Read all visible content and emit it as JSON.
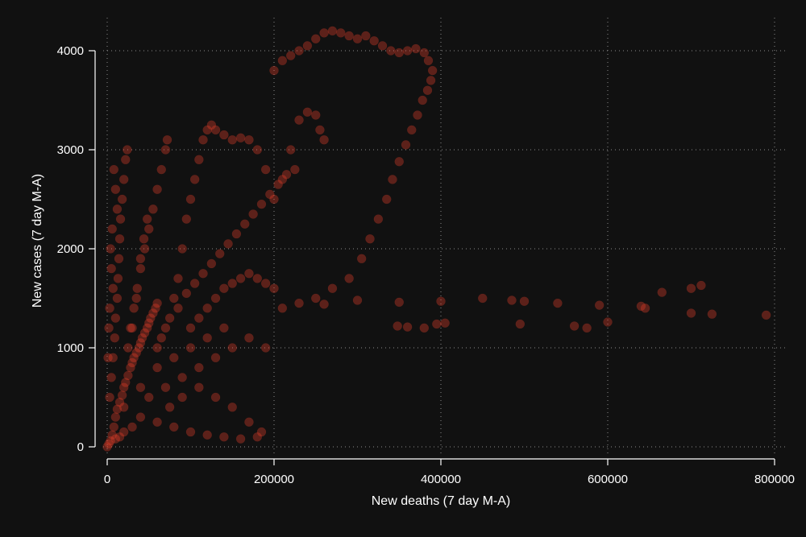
{
  "chart_data": {
    "type": "scatter",
    "xlabel": "New deaths (7 day M-A)",
    "ylabel": "New cases (7 day M-A)",
    "xlim": [
      0,
      800000
    ],
    "ylim": [
      0,
      4000
    ],
    "x_ticks": [
      0,
      200000,
      400000,
      600000,
      800000
    ],
    "y_ticks": [
      0,
      1000,
      2000,
      3000,
      4000
    ],
    "x_tick_labels": [
      "0",
      "200000",
      "400000",
      "600000",
      "800000"
    ],
    "y_tick_labels": [
      "0",
      "1000",
      "2000",
      "3000",
      "4000"
    ],
    "grid": true,
    "legend": "none",
    "marker_color": "#e8402a",
    "background": "#111111",
    "series": [
      {
        "points": [
          [
            0,
            0
          ],
          [
            2000,
            30
          ],
          [
            4000,
            60
          ],
          [
            6000,
            120
          ],
          [
            8000,
            200
          ],
          [
            10000,
            300
          ],
          [
            12000,
            380
          ],
          [
            15000,
            450
          ],
          [
            18000,
            520
          ],
          [
            20000,
            600
          ],
          [
            22000,
            650
          ],
          [
            25000,
            720
          ],
          [
            28000,
            800
          ],
          [
            30000,
            850
          ],
          [
            32000,
            900
          ],
          [
            35000,
            950
          ],
          [
            38000,
            1000
          ],
          [
            40000,
            1050
          ],
          [
            42000,
            1100
          ],
          [
            45000,
            1150
          ],
          [
            48000,
            1200
          ],
          [
            50000,
            1250
          ],
          [
            52000,
            1300
          ],
          [
            55000,
            1350
          ],
          [
            58000,
            1400
          ],
          [
            60000,
            1450
          ],
          [
            3000,
            500
          ],
          [
            5000,
            700
          ],
          [
            7000,
            900
          ],
          [
            9000,
            1100
          ],
          [
            10000,
            1300
          ],
          [
            12000,
            1500
          ],
          [
            13000,
            1700
          ],
          [
            14000,
            1900
          ],
          [
            15000,
            2100
          ],
          [
            16000,
            2300
          ],
          [
            18000,
            2500
          ],
          [
            20000,
            2700
          ],
          [
            22000,
            2900
          ],
          [
            24000,
            3000
          ],
          [
            30000,
            1200
          ],
          [
            35000,
            1500
          ],
          [
            40000,
            1800
          ],
          [
            45000,
            2000
          ],
          [
            50000,
            2200
          ],
          [
            55000,
            2400
          ],
          [
            60000,
            2600
          ],
          [
            65000,
            2800
          ],
          [
            70000,
            3000
          ],
          [
            72000,
            3100
          ],
          [
            80000,
            1500
          ],
          [
            85000,
            1700
          ],
          [
            90000,
            2000
          ],
          [
            95000,
            2300
          ],
          [
            100000,
            2500
          ],
          [
            105000,
            2700
          ],
          [
            110000,
            2900
          ],
          [
            115000,
            3100
          ],
          [
            120000,
            3200
          ],
          [
            125000,
            3250
          ],
          [
            100000,
            1200
          ],
          [
            110000,
            1300
          ],
          [
            120000,
            1400
          ],
          [
            130000,
            1500
          ],
          [
            140000,
            1600
          ],
          [
            150000,
            1650
          ],
          [
            160000,
            1700
          ],
          [
            170000,
            1750
          ],
          [
            180000,
            1700
          ],
          [
            190000,
            1650
          ],
          [
            200000,
            1600
          ],
          [
            130000,
            3200
          ],
          [
            140000,
            3150
          ],
          [
            150000,
            3100
          ],
          [
            160000,
            3120
          ],
          [
            170000,
            3100
          ],
          [
            180000,
            3000
          ],
          [
            190000,
            2800
          ],
          [
            200000,
            2500
          ],
          [
            210000,
            2700
          ],
          [
            220000,
            3000
          ],
          [
            230000,
            3300
          ],
          [
            240000,
            3380
          ],
          [
            250000,
            3350
          ],
          [
            255000,
            3200
          ],
          [
            260000,
            3100
          ],
          [
            200000,
            3800
          ],
          [
            210000,
            3900
          ],
          [
            220000,
            3950
          ],
          [
            230000,
            4000
          ],
          [
            240000,
            4050
          ],
          [
            250000,
            4120
          ],
          [
            260000,
            4180
          ],
          [
            270000,
            4200
          ],
          [
            280000,
            4180
          ],
          [
            290000,
            4150
          ],
          [
            300000,
            4120
          ],
          [
            310000,
            4150
          ],
          [
            320000,
            4100
          ],
          [
            330000,
            4050
          ],
          [
            340000,
            4000
          ],
          [
            350000,
            3980
          ],
          [
            360000,
            4000
          ],
          [
            370000,
            4020
          ],
          [
            380000,
            3980
          ],
          [
            385000,
            3900
          ],
          [
            390000,
            3800
          ],
          [
            388000,
            3700
          ],
          [
            384000,
            3600
          ],
          [
            378000,
            3500
          ],
          [
            372000,
            3350
          ],
          [
            365000,
            3200
          ],
          [
            358000,
            3050
          ],
          [
            350000,
            2880
          ],
          [
            342000,
            2700
          ],
          [
            335000,
            2500
          ],
          [
            325000,
            2300
          ],
          [
            315000,
            2100
          ],
          [
            305000,
            1900
          ],
          [
            290000,
            1700
          ],
          [
            270000,
            1600
          ],
          [
            250000,
            1500
          ],
          [
            230000,
            1450
          ],
          [
            210000,
            1400
          ],
          [
            260000,
            1440
          ],
          [
            300000,
            1480
          ],
          [
            350000,
            1460
          ],
          [
            400000,
            1470
          ],
          [
            450000,
            1500
          ],
          [
            485000,
            1480
          ],
          [
            500000,
            1470
          ],
          [
            540000,
            1450
          ],
          [
            590000,
            1430
          ],
          [
            640000,
            1420
          ],
          [
            665000,
            1560
          ],
          [
            700000,
            1600
          ],
          [
            712000,
            1630
          ],
          [
            348000,
            1220
          ],
          [
            360000,
            1210
          ],
          [
            380000,
            1200
          ],
          [
            395000,
            1240
          ],
          [
            405000,
            1250
          ],
          [
            495000,
            1240
          ],
          [
            560000,
            1220
          ],
          [
            575000,
            1200
          ],
          [
            600000,
            1260
          ],
          [
            645000,
            1400
          ],
          [
            700000,
            1350
          ],
          [
            725000,
            1340
          ],
          [
            790000,
            1330
          ],
          [
            20000,
            400
          ],
          [
            40000,
            300
          ],
          [
            60000,
            250
          ],
          [
            80000,
            200
          ],
          [
            100000,
            150
          ],
          [
            120000,
            120
          ],
          [
            140000,
            100
          ],
          [
            160000,
            80
          ],
          [
            180000,
            100
          ],
          [
            50000,
            500
          ],
          [
            70000,
            600
          ],
          [
            90000,
            700
          ],
          [
            110000,
            800
          ],
          [
            130000,
            900
          ],
          [
            150000,
            1000
          ],
          [
            170000,
            1100
          ],
          [
            190000,
            1000
          ],
          [
            40000,
            600
          ],
          [
            60000,
            800
          ],
          [
            80000,
            900
          ],
          [
            100000,
            1000
          ],
          [
            120000,
            1100
          ],
          [
            140000,
            1200
          ],
          [
            25000,
            1000
          ],
          [
            28000,
            1200
          ],
          [
            32000,
            1400
          ],
          [
            36000,
            1600
          ],
          [
            40000,
            1900
          ],
          [
            44000,
            2100
          ],
          [
            48000,
            2300
          ],
          [
            8000,
            2800
          ],
          [
            10000,
            2600
          ],
          [
            12000,
            2400
          ],
          [
            6000,
            2200
          ],
          [
            4000,
            2000
          ],
          [
            5000,
            1800
          ],
          [
            7000,
            1600
          ],
          [
            3000,
            1400
          ],
          [
            2000,
            1200
          ],
          [
            1000,
            900
          ],
          [
            60000,
            1000
          ],
          [
            65000,
            1100
          ],
          [
            70000,
            1200
          ],
          [
            75000,
            1300
          ],
          [
            85000,
            1400
          ],
          [
            95000,
            1550
          ],
          [
            105000,
            1650
          ],
          [
            115000,
            1750
          ],
          [
            125000,
            1850
          ],
          [
            135000,
            1950
          ],
          [
            145000,
            2050
          ],
          [
            155000,
            2150
          ],
          [
            165000,
            2250
          ],
          [
            175000,
            2350
          ],
          [
            185000,
            2450
          ],
          [
            195000,
            2550
          ],
          [
            205000,
            2650
          ],
          [
            215000,
            2750
          ],
          [
            225000,
            2800
          ],
          [
            185000,
            150
          ],
          [
            170000,
            250
          ],
          [
            150000,
            400
          ],
          [
            130000,
            500
          ],
          [
            110000,
            600
          ],
          [
            90000,
            500
          ],
          [
            75000,
            400
          ],
          [
            20000,
            150
          ],
          [
            15000,
            100
          ],
          [
            10000,
            80
          ],
          [
            30000,
            200
          ]
        ]
      }
    ]
  }
}
